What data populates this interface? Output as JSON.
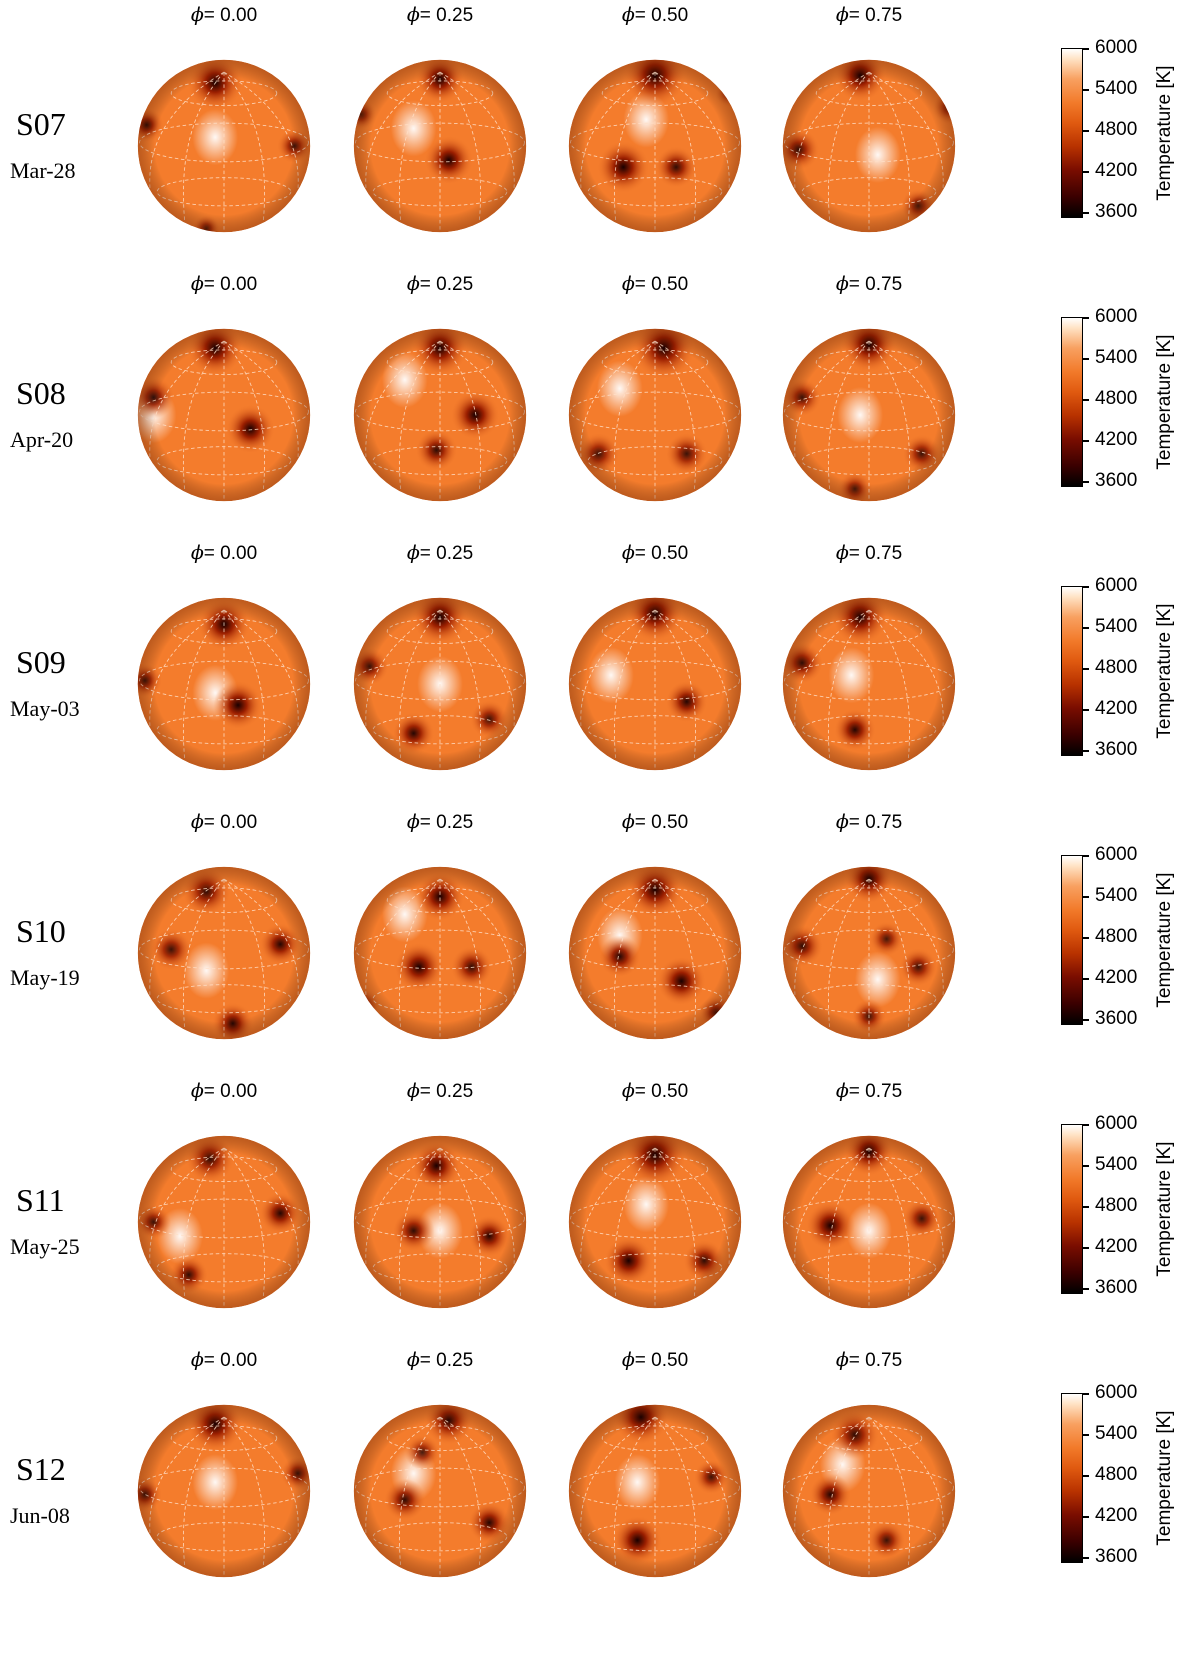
{
  "phase_prefix": "= ",
  "phase_symbol": "ϕ",
  "phases": [
    "0.00",
    "0.25",
    "0.50",
    "0.75"
  ],
  "colorbar": {
    "title": "Temperature [K]",
    "ticks": [
      "6000",
      "5400",
      "4800",
      "4200",
      "3600"
    ],
    "range": [
      3600,
      6000
    ]
  },
  "rows": [
    {
      "epoch": "S07",
      "date": "Mar-28"
    },
    {
      "epoch": "S08",
      "date": "Apr-20"
    },
    {
      "epoch": "S09",
      "date": "May-03"
    },
    {
      "epoch": "S10",
      "date": "May-19"
    },
    {
      "epoch": "S11",
      "date": "May-25"
    },
    {
      "epoch": "S12",
      "date": "Jun-08"
    }
  ],
  "colors": {
    "hot": "#ffffff",
    "photosphere": "#f47c2c",
    "spot_mid": "#9c1f00",
    "spot_core": "#1a0000",
    "grid": "#ffe0c8"
  }
}
